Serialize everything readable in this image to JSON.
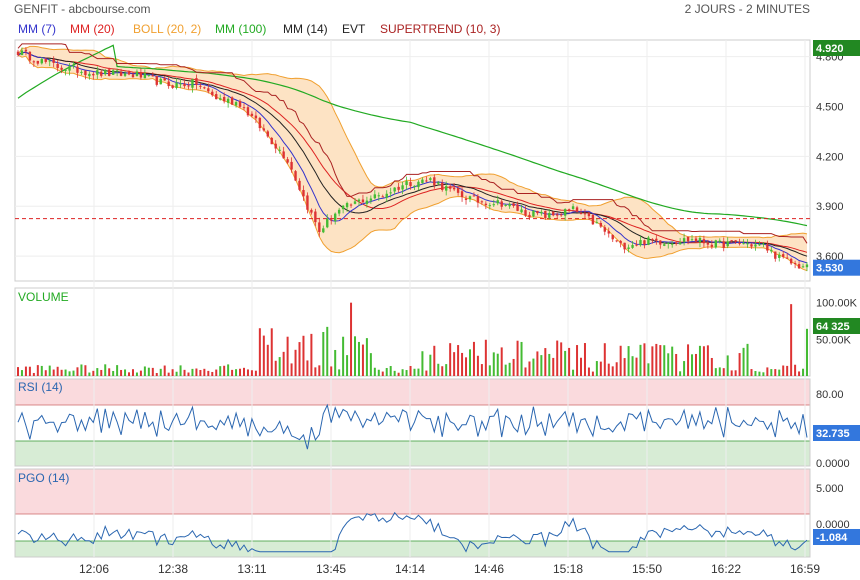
{
  "header": {
    "title": "GENFIT - abcbourse.com",
    "period": "2 JOURS - 2 MINUTES"
  },
  "indicators": [
    {
      "label": "MM (7)",
      "color": "#3333cc"
    },
    {
      "label": "MM (20)",
      "color": "#dd2222"
    },
    {
      "label": "BOLL (20, 2)",
      "color": "#f0a030"
    },
    {
      "label": "MM (100)",
      "color": "#22aa22"
    },
    {
      "label": "MM (14)",
      "color": "#222222"
    },
    {
      "label": "EVT",
      "color": "#222222"
    },
    {
      "label": "SUPERTREND (10, 3)",
      "color": "#aa2222"
    }
  ],
  "colors": {
    "up": "#44bb33",
    "down": "#dd3333",
    "rsi_line": "#2a66b0",
    "price_badge": "#3377dd",
    "green_badge": "#228822",
    "boll_fill": "#fde3c4",
    "ref_line": "#dd2222"
  },
  "chart_data": [
    {
      "type": "candlestick",
      "panel": "price",
      "ylim": [
        3.45,
        4.9
      ],
      "yticks": [
        "4.800",
        "4.500",
        "4.200",
        "3.900",
        "3.600"
      ],
      "y_tick_values": [
        4.8,
        4.5,
        4.2,
        3.9,
        3.6
      ],
      "reference_level": 3.825,
      "high_badge": "4.920",
      "last_badge": "3.530",
      "x_ticks": [
        "12:06",
        "12:38",
        "13:11",
        "13:45",
        "14:14",
        "14:46",
        "15:18",
        "15:50",
        "16:22",
        "16:59"
      ],
      "close_anchors": [
        [
          0,
          4.83
        ],
        [
          5,
          4.78
        ],
        [
          10,
          4.74
        ],
        [
          20,
          4.7
        ],
        [
          30,
          4.69
        ],
        [
          38,
          4.63
        ],
        [
          45,
          4.64
        ],
        [
          50,
          4.55
        ],
        [
          56,
          4.52
        ],
        [
          62,
          4.35
        ],
        [
          68,
          4.18
        ],
        [
          73,
          3.9
        ],
        [
          76,
          3.75
        ],
        [
          80,
          3.86
        ],
        [
          86,
          3.93
        ],
        [
          92,
          3.97
        ],
        [
          98,
          4.04
        ],
        [
          104,
          4.06
        ],
        [
          110,
          3.98
        ],
        [
          116,
          3.93
        ],
        [
          122,
          3.92
        ],
        [
          128,
          3.86
        ],
        [
          134,
          3.84
        ],
        [
          140,
          3.88
        ],
        [
          146,
          3.79
        ],
        [
          152,
          3.66
        ],
        [
          158,
          3.69
        ],
        [
          164,
          3.69
        ],
        [
          170,
          3.7
        ],
        [
          176,
          3.67
        ],
        [
          182,
          3.68
        ],
        [
          188,
          3.66
        ],
        [
          192,
          3.59
        ],
        [
          196,
          3.55
        ],
        [
          199,
          3.53
        ]
      ],
      "count": 200
    },
    {
      "type": "bar",
      "panel": "volume",
      "title": "VOLUME",
      "yticks": [
        "100.00K",
        "50.00K"
      ],
      "y_tick_values": [
        100000,
        50000
      ],
      "ylim": [
        0,
        120000
      ],
      "last_badge": "64 325",
      "last_value": 64325
    },
    {
      "type": "line",
      "panel": "rsi",
      "title": "RSI (14)",
      "yticks": [
        "80.00",
        "0.0000"
      ],
      "y_tick_values": [
        80,
        0
      ],
      "ylim": [
        0,
        100
      ],
      "last_badge": "32.735",
      "last_value": 32.735
    },
    {
      "type": "line",
      "panel": "pgo",
      "title": "PGO (14)",
      "yticks": [
        "5.000",
        "0.0000"
      ],
      "y_tick_values": [
        5,
        0
      ],
      "ylim": [
        -3,
        7
      ],
      "last_badge": "-1.084",
      "last_value": -1.084
    }
  ]
}
